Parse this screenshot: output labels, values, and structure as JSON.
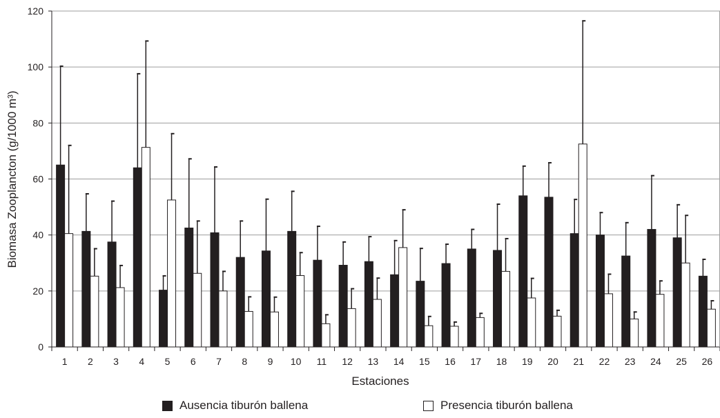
{
  "chart_data": {
    "type": "bar",
    "xlabel": "Estaciones",
    "ylabel": "Biomasa Zooplancton (g/1000 m³)",
    "ylim": [
      0,
      120
    ],
    "yticks": [
      0,
      20,
      40,
      60,
      80,
      100,
      120
    ],
    "grid": true,
    "legend_position": "bottom",
    "error_bars": "upper",
    "categories": [
      "1",
      "2",
      "3",
      "4",
      "5",
      "6",
      "7",
      "8",
      "9",
      "10",
      "11",
      "12",
      "13",
      "14",
      "15",
      "16",
      "17",
      "18",
      "19",
      "20",
      "21",
      "22",
      "23",
      "24",
      "25",
      "26"
    ],
    "series": [
      {
        "name": "Ausencia tiburón ballena",
        "color": "#231f20",
        "values": [
          65,
          41.3,
          37.5,
          64,
          20.3,
          42.5,
          40.8,
          32,
          34.3,
          41.3,
          31,
          29.2,
          30.5,
          25.8,
          23.5,
          29.8,
          35,
          34.5,
          54,
          53.5,
          40.5,
          40,
          32.5,
          42,
          39,
          25.3
        ],
        "errors": [
          35.3,
          13.4,
          14.6,
          33.6,
          5.1,
          24.7,
          23.5,
          13,
          18.5,
          14.3,
          12.1,
          8.3,
          8.9,
          12.2,
          11.7,
          6.9,
          7,
          16.5,
          10.6,
          12.3,
          12.2,
          8,
          11.9,
          19.2,
          11.8,
          6
        ]
      },
      {
        "name": "Presencia tiburón ballena",
        "color": "#ffffff",
        "values": [
          40.5,
          25.3,
          21.2,
          71.3,
          52.5,
          26.3,
          20,
          12.7,
          12.5,
          25.5,
          8.3,
          13.7,
          17,
          35.5,
          7.6,
          7.4,
          10.5,
          27,
          17.5,
          11,
          72.5,
          19,
          10,
          18.8,
          30,
          13.5
        ],
        "errors": [
          31.5,
          9.8,
          7.9,
          38,
          23.7,
          18.7,
          7,
          5.2,
          5.3,
          8.2,
          3.2,
          7.1,
          7.6,
          13.5,
          3.3,
          1.5,
          1.5,
          11.7,
          7,
          2.1,
          44,
          7,
          2.5,
          4.8,
          17,
          3
        ]
      }
    ]
  }
}
